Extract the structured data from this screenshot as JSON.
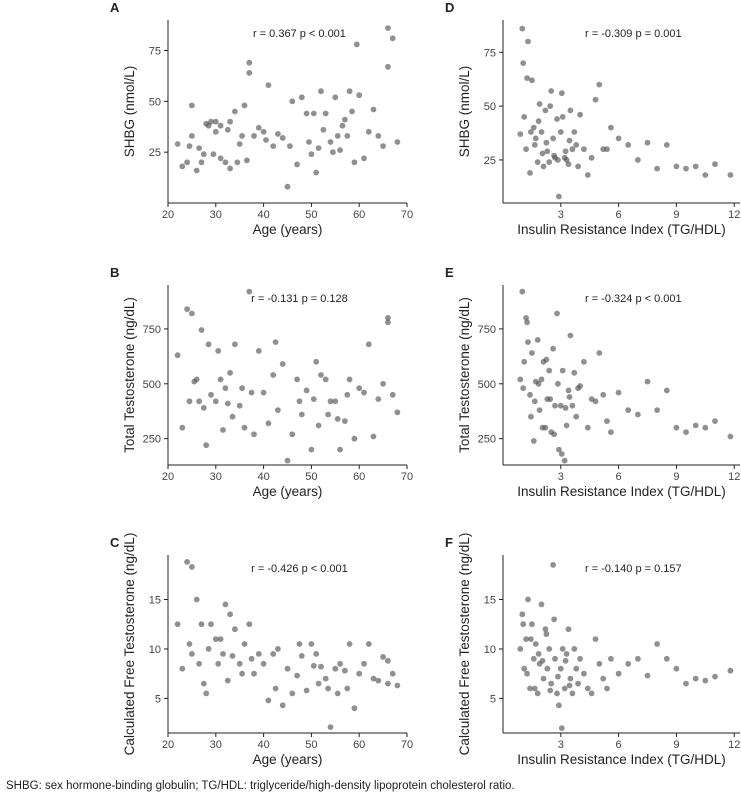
{
  "caption": "SHBG: sex hormone-binding globulin; TG/HDL: triglyceride/high-density lipoprotein cholesterol ratio.",
  "colors": {
    "point": "#555555",
    "axis": "#222222",
    "text": "#222222"
  },
  "chart_data": [
    {
      "panel": "A",
      "type": "scatter",
      "xlabel": "Age (years)",
      "ylabel": "SHBG (nmol/L)",
      "xlim": [
        20,
        70
      ],
      "ylim": [
        0,
        90
      ],
      "xticks": [
        20,
        30,
        40,
        50,
        60,
        70
      ],
      "yticks": [
        25,
        50,
        75
      ],
      "annotation": "r = 0.367   p < 0.001",
      "x": [
        22,
        23,
        24,
        24.5,
        25,
        25,
        26,
        26.5,
        27,
        27.5,
        28,
        28.5,
        29,
        29.5,
        30,
        30,
        31,
        31,
        32,
        32.5,
        33,
        33,
        34,
        34.5,
        35,
        35.5,
        36,
        36.5,
        37,
        37,
        38,
        39,
        40,
        40.5,
        41,
        42,
        43,
        44,
        45,
        45.5,
        46,
        47,
        48,
        49,
        49.5,
        50,
        50.5,
        51,
        51.5,
        52,
        52.5,
        53,
        54,
        54.5,
        55,
        55.5,
        56,
        56.5,
        57,
        57.5,
        58,
        58.5,
        59,
        59.5,
        60,
        61,
        62,
        63,
        64,
        65,
        66,
        66,
        67,
        68
      ],
      "y": [
        29,
        18,
        20,
        28,
        48,
        33,
        16,
        27,
        20,
        24,
        39,
        38,
        40,
        24,
        35,
        40,
        22,
        38,
        20,
        36,
        17,
        40,
        45,
        20,
        29,
        33,
        48,
        21,
        64,
        69,
        33,
        37,
        35,
        31,
        58,
        28,
        34,
        32,
        8,
        28,
        50,
        19,
        52,
        44,
        30,
        24,
        44,
        15,
        27,
        55,
        36,
        44,
        30,
        25,
        52,
        33,
        26,
        38,
        41,
        33,
        55,
        45,
        20,
        78,
        53,
        22,
        35,
        46,
        33,
        28,
        67,
        86,
        81,
        30
      ]
    },
    {
      "panel": "B",
      "type": "scatter",
      "xlabel": "Age (years)",
      "ylabel": "Total Testosterone (ng/dL)",
      "xlim": [
        20,
        70
      ],
      "ylim": [
        130,
        950
      ],
      "xticks": [
        20,
        30,
        40,
        50,
        60,
        70
      ],
      "yticks": [
        250,
        500,
        750
      ],
      "annotation": "r = -0.131   p = 0.128",
      "x": [
        22,
        23,
        24,
        24.5,
        25,
        25.5,
        26,
        26.5,
        27,
        27.5,
        28,
        28.5,
        29,
        30,
        30.5,
        31,
        31.5,
        32,
        32.5,
        33,
        33.5,
        34,
        35,
        35.5,
        36,
        37,
        37.5,
        38,
        39,
        40,
        41,
        42,
        42.5,
        43,
        44,
        45,
        46,
        47,
        47.5,
        48,
        49,
        50,
        50.5,
        51,
        51.5,
        52,
        53,
        53.5,
        54,
        55,
        55.5,
        56,
        57,
        57.5,
        58,
        59,
        60,
        61,
        62,
        63,
        64,
        65,
        66,
        66,
        67,
        68
      ],
      "y": [
        630,
        300,
        840,
        420,
        820,
        510,
        520,
        420,
        745,
        390,
        220,
        680,
        450,
        420,
        650,
        520,
        290,
        480,
        410,
        550,
        350,
        680,
        400,
        480,
        300,
        920,
        460,
        270,
        650,
        460,
        320,
        540,
        690,
        380,
        590,
        150,
        270,
        520,
        420,
        360,
        470,
        200,
        430,
        600,
        310,
        540,
        520,
        360,
        420,
        420,
        340,
        200,
        330,
        450,
        520,
        250,
        480,
        460,
        680,
        260,
        430,
        500,
        800,
        780,
        450,
        370
      ]
    },
    {
      "panel": "C",
      "type": "scatter",
      "xlabel": "Age (years)",
      "ylabel": "Calculated Free Testosterone (ng/dL)",
      "xlim": [
        20,
        70
      ],
      "ylim": [
        1.5,
        19.5
      ],
      "xticks": [
        20,
        30,
        40,
        50,
        60,
        70
      ],
      "yticks": [
        5,
        10,
        15
      ],
      "annotation": "r = -0.426   p < 0.001",
      "x": [
        22,
        23,
        24,
        24.5,
        25,
        25,
        26,
        26.5,
        27,
        27.5,
        28,
        28.5,
        29,
        30,
        30.5,
        31,
        31.5,
        32,
        32.5,
        33,
        33.5,
        34,
        35,
        35.5,
        36,
        37,
        37.5,
        38,
        39,
        40,
        41,
        42,
        42.5,
        43,
        44,
        45,
        46,
        47,
        47.5,
        48,
        49,
        50,
        50.5,
        51,
        51.5,
        52,
        53,
        53.5,
        54,
        55,
        55.5,
        56,
        57,
        57.5,
        58,
        59,
        60,
        61,
        62,
        63,
        64,
        65,
        66,
        66,
        67,
        68
      ],
      "y": [
        12.5,
        8,
        18.8,
        10.5,
        18.3,
        9.5,
        15,
        8.5,
        12.5,
        6.5,
        5.5,
        10,
        12.5,
        11,
        8.5,
        11,
        9.5,
        14.5,
        6.8,
        13.5,
        9.3,
        12,
        8.5,
        7.5,
        10.5,
        12.5,
        9,
        7.5,
        9.5,
        8.5,
        4.8,
        9.5,
        6,
        10,
        4.3,
        8,
        5.5,
        7.3,
        10.5,
        9.3,
        5.8,
        10.5,
        8.3,
        9.5,
        6.5,
        8.2,
        7,
        6,
        2.1,
        8,
        5.5,
        8.5,
        7.8,
        6,
        10.5,
        4,
        7.5,
        8.5,
        10.5,
        7,
        6.8,
        9.2,
        6.5,
        8.8,
        7.5,
        6.3
      ]
    },
    {
      "panel": "D",
      "type": "scatter",
      "xlabel": "Insulin Resistance Index (TG/HDL)",
      "ylabel": "SHBG (nmol/L)",
      "xlim": [
        0,
        12.3
      ],
      "ylim": [
        5,
        90
      ],
      "xticks": [
        3,
        6,
        9,
        12
      ],
      "yticks": [
        25,
        50,
        75
      ],
      "annotation": "r = -0.309   p = 0.001",
      "x": [
        0.9,
        1,
        1.1,
        1.2,
        1.3,
        1.4,
        1.5,
        1.6,
        1.7,
        1.8,
        1.9,
        2,
        2.1,
        2.2,
        2.3,
        2.4,
        2.5,
        2.6,
        2.7,
        2.8,
        2.9,
        3,
        3.1,
        3.2,
        3.3,
        3.4,
        3.5,
        3.6,
        3.7,
        3.8,
        3.9,
        4,
        4.2,
        4.4,
        4.6,
        4.8,
        5,
        5.2,
        5.4,
        5.6,
        6,
        6.5,
        7,
        7.5,
        8,
        8.5,
        9,
        9.5,
        10,
        10.5,
        11,
        11.8,
        1.05,
        1.25,
        1.45,
        1.65,
        1.85,
        2.05,
        2.25,
        2.45,
        2.65,
        2.85,
        3.05,
        3.25,
        3.45
      ],
      "y": [
        37,
        86,
        45,
        30,
        80,
        19,
        62,
        40,
        35,
        24,
        51,
        38,
        22,
        48,
        29,
        24,
        57,
        35,
        26,
        44,
        8,
        38,
        45,
        26,
        25,
        23,
        48,
        30,
        38,
        32,
        22,
        46,
        30,
        18,
        26,
        53,
        60,
        30,
        30,
        40,
        35,
        32,
        25,
        33,
        21,
        32,
        22,
        21,
        22,
        18,
        23,
        18,
        70,
        63,
        38,
        32,
        43,
        28,
        33,
        50,
        27,
        25,
        56,
        29,
        34
      ]
    },
    {
      "panel": "E",
      "type": "scatter",
      "xlabel": "Insulin Resistance Index (TG/HDL)",
      "ylabel": "Total Testosterone (ng/dL)",
      "xlim": [
        0,
        12.3
      ],
      "ylim": [
        130,
        950
      ],
      "xticks": [
        3,
        6,
        9,
        12
      ],
      "yticks": [
        250,
        500,
        750
      ],
      "annotation": "r = -0.324   p < 0.001",
      "x": [
        0.9,
        1,
        1.1,
        1.2,
        1.3,
        1.4,
        1.5,
        1.6,
        1.7,
        1.8,
        1.9,
        2,
        2.1,
        2.2,
        2.3,
        2.4,
        2.5,
        2.6,
        2.7,
        2.8,
        2.9,
        3,
        3.1,
        3.2,
        3.3,
        3.4,
        3.5,
        3.6,
        3.7,
        3.8,
        3.9,
        4,
        4.2,
        4.4,
        4.6,
        4.8,
        5,
        5.2,
        5.4,
        5.6,
        6,
        6.5,
        7,
        7.5,
        8,
        8.5,
        9,
        9.5,
        10,
        10.5,
        11,
        11.8,
        1.05,
        1.25,
        1.45,
        1.65,
        1.85,
        2.05,
        2.25,
        2.45,
        2.65,
        2.85,
        3.05,
        3.25,
        3.45
      ],
      "y": [
        520,
        920,
        600,
        800,
        690,
        450,
        640,
        240,
        510,
        700,
        380,
        520,
        600,
        300,
        430,
        560,
        280,
        660,
        400,
        820,
        200,
        400,
        560,
        150,
        310,
        470,
        720,
        400,
        550,
        350,
        480,
        490,
        600,
        300,
        430,
        420,
        640,
        450,
        330,
        280,
        460,
        380,
        360,
        510,
        380,
        470,
        300,
        280,
        310,
        300,
        330,
        260,
        480,
        780,
        350,
        420,
        500,
        300,
        610,
        430,
        270,
        500,
        180,
        390,
        440
      ]
    },
    {
      "panel": "F",
      "type": "scatter",
      "xlabel": "Insulin Resistance Index (TG/HDL)",
      "ylabel": "Calculated Free Testosterone (ng/dL)",
      "xlim": [
        0,
        12.3
      ],
      "ylim": [
        1.5,
        19.5
      ],
      "xticks": [
        3,
        6,
        9,
        12
      ],
      "yticks": [
        5,
        10,
        15
      ],
      "annotation": "r = -0.140   p = 0.157",
      "x": [
        0.9,
        1,
        1.1,
        1.2,
        1.3,
        1.4,
        1.5,
        1.6,
        1.7,
        1.8,
        1.9,
        2,
        2.1,
        2.2,
        2.3,
        2.4,
        2.5,
        2.6,
        2.7,
        2.8,
        2.9,
        3,
        3.1,
        3.2,
        3.3,
        3.4,
        3.5,
        3.6,
        3.7,
        3.8,
        3.9,
        4,
        4.2,
        4.4,
        4.6,
        4.8,
        5,
        5.2,
        5.4,
        5.6,
        6,
        6.5,
        7,
        7.5,
        8,
        8.5,
        9,
        9.5,
        10,
        10.5,
        11,
        11.8,
        1.05,
        1.25,
        1.45,
        1.65,
        1.85,
        2.05,
        2.25,
        2.45,
        2.65,
        2.85,
        3.05,
        3.25,
        3.45
      ],
      "y": [
        10,
        13.5,
        8,
        11,
        15,
        6,
        12.5,
        9,
        10.5,
        5.5,
        8.5,
        14.5,
        7,
        12,
        8,
        10,
        6.5,
        18.5,
        9,
        5.5,
        4.3,
        8,
        10,
        6,
        9.5,
        12,
        7,
        5.5,
        10,
        8,
        6.5,
        9,
        7.5,
        6,
        5.5,
        11,
        8.5,
        7,
        6,
        9,
        7.5,
        8.5,
        9,
        7.3,
        10.5,
        9,
        8,
        6.5,
        7,
        6.8,
        7.2,
        7.8,
        12.5,
        7.5,
        11,
        6,
        9.5,
        8.8,
        11.5,
        5.8,
        13,
        7.2,
        2,
        8.8,
        6.3
      ]
    }
  ]
}
